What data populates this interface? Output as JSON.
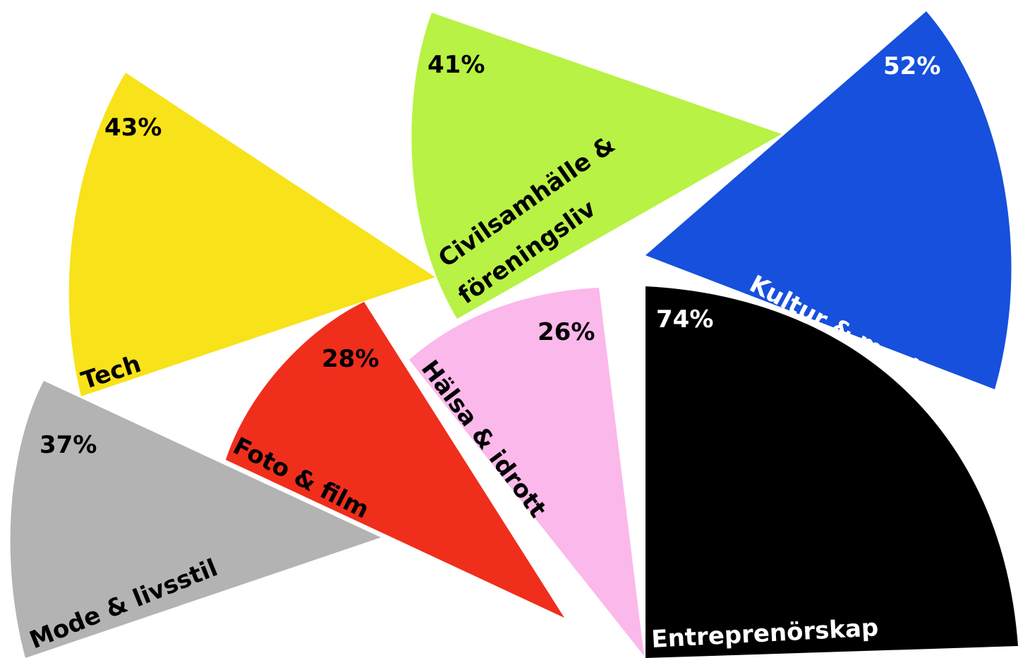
{
  "chart_data": {
    "type": "pie",
    "title": "",
    "series": [
      {
        "category": "Tech",
        "value": 43,
        "label": "43%",
        "color": "#f8e21a",
        "text_color": "#000000"
      },
      {
        "category": "Civilsamhälle & föreningsliv",
        "category_lines": [
          "Civilsamhälle &",
          "föreningsliv"
        ],
        "value": 41,
        "label": "41%",
        "color": "#b8f244",
        "text_color": "#000000"
      },
      {
        "category": "Kultur & musik",
        "value": 52,
        "label": "52%",
        "color": "#1650dc",
        "text_color": "#ffffff"
      },
      {
        "category": "Foto & film",
        "value": 28,
        "label": "28%",
        "color": "#f02e1c",
        "text_color": "#000000"
      },
      {
        "category": "Hälsa & idrott",
        "value": 26,
        "label": "26%",
        "color": "#fbb8eb",
        "text_color": "#000000"
      },
      {
        "category": "Entreprenörskap",
        "value": 74,
        "label": "74%",
        "color": "#000000",
        "text_color": "#ffffff"
      },
      {
        "category": "Mode & livsstil",
        "value": 37,
        "label": "37%",
        "color": "#b3b3b3",
        "text_color": "#000000"
      }
    ]
  }
}
